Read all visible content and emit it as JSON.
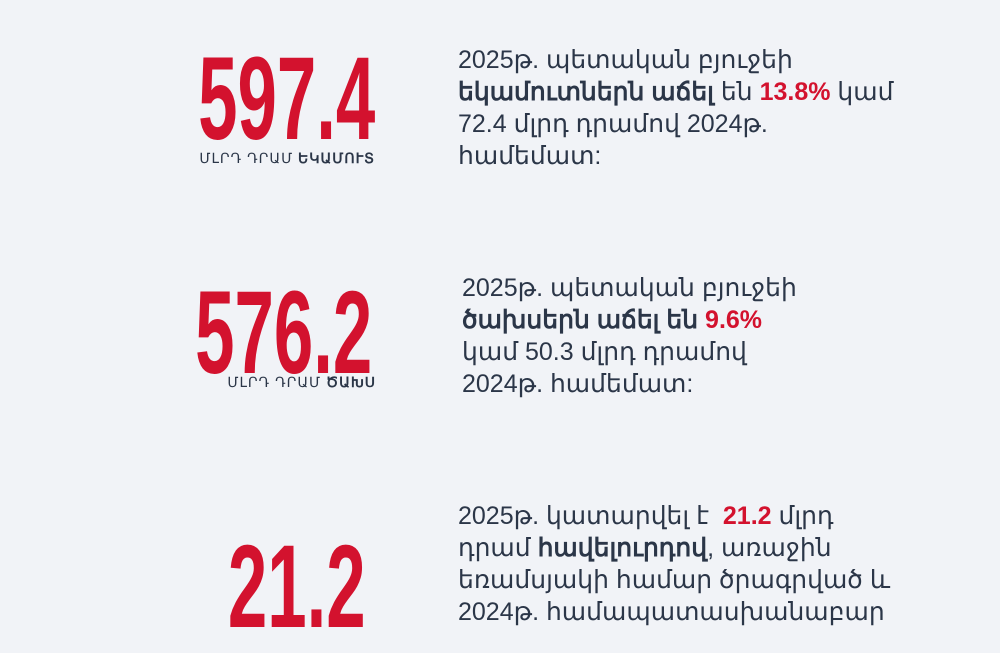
{
  "blocks": [
    {
      "number": "597.4",
      "caption": [
        {
          "text": "ՄԼՐԴ ԴՐԱՄ ",
          "style": "light"
        },
        {
          "text": "ԵԿԱՄՈՒՏ",
          "style": "bold"
        }
      ],
      "lines": [
        [
          {
            "text": "2025թ. պետական բյուջեի",
            "style": "normal"
          }
        ],
        [
          {
            "text": "եկամուտներն աճել",
            "style": "bold"
          },
          {
            "text": " են ",
            "style": "normal"
          },
          {
            "text": "13.8%",
            "style": "red"
          },
          {
            "text": " կամ",
            "style": "normal"
          }
        ],
        [
          {
            "text": "72.4 մլրդ դրամով 2024թ.",
            "style": "normal"
          }
        ],
        [
          {
            "text": "համեմատ:",
            "style": "normal"
          }
        ]
      ]
    },
    {
      "number": "576.2",
      "caption": [
        {
          "text": "ՄԼՐԴ ԴՐԱՄ ",
          "style": "light"
        },
        {
          "text": "ԾԱԽՍ",
          "style": "bold"
        }
      ],
      "lines": [
        [
          {
            "text": "2025թ. պետական բյուջեի",
            "style": "normal"
          }
        ],
        [
          {
            "text": "ծախսերն աճել են",
            "style": "bold"
          },
          {
            "text": " ",
            "style": "normal"
          },
          {
            "text": "9.6%",
            "style": "red"
          }
        ],
        [
          {
            "text": "կամ 50.3 մլրդ դրամով",
            "style": "normal"
          }
        ],
        [
          {
            "text": "2024թ. համեմատ:",
            "style": "normal"
          }
        ]
      ]
    },
    {
      "number": "21.2",
      "caption": [],
      "lines": [
        [
          {
            "text": "2025թ. կատարվել է  ",
            "style": "normal"
          },
          {
            "text": "21.2",
            "style": "red"
          },
          {
            "text": " մլրդ",
            "style": "normal"
          }
        ],
        [
          {
            "text": "դրամ ",
            "style": "normal"
          },
          {
            "text": "հավելուրդով",
            "style": "bold"
          },
          {
            "text": ", առաջին",
            "style": "normal"
          }
        ],
        [
          {
            "text": "եռամսյակի համար ծրագրված և",
            "style": "normal"
          }
        ],
        [
          {
            "text": "2024թ. համապատասխանաբար",
            "style": "normal"
          }
        ]
      ]
    }
  ]
}
